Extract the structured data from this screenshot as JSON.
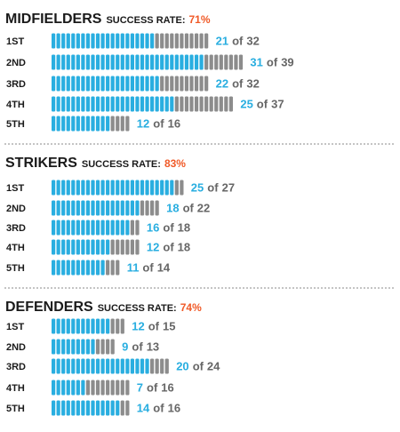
{
  "colors": {
    "success": "#29aee0",
    "miss": "#8c8c8c",
    "rate": "#f05a28",
    "text": "#1a1a1a",
    "of_text": "#666666"
  },
  "chart_data": [
    {
      "type": "bar",
      "title": "MIDFIELDERS",
      "subtitle": "SUCCESS RATE:",
      "rate": "71%",
      "of_word": "of",
      "categories": [
        "1ST",
        "2ND",
        "3RD",
        "4TH",
        "5TH"
      ],
      "series": [
        {
          "name": "",
          "values": [
            21,
            31,
            22,
            25,
            12
          ]
        },
        {
          "name": "",
          "values": [
            32,
            39,
            32,
            37,
            16
          ]
        }
      ]
    },
    {
      "type": "bar",
      "title": "STRIKERS",
      "subtitle": "SUCCESS RATE:",
      "rate": "83%",
      "of_word": "of",
      "categories": [
        "1ST",
        "2ND",
        "3RD",
        "4TH",
        "5TH"
      ],
      "series": [
        {
          "name": "",
          "values": [
            25,
            18,
            16,
            12,
            11
          ]
        },
        {
          "name": "",
          "values": [
            27,
            22,
            18,
            18,
            14
          ]
        }
      ]
    },
    {
      "type": "bar",
      "title": "DEFENDERS",
      "subtitle": "SUCCESS RATE:",
      "rate": "74%",
      "of_word": "of",
      "categories": [
        "1ST",
        "2ND",
        "3RD",
        "4TH",
        "5TH"
      ],
      "series": [
        {
          "name": "",
          "values": [
            12,
            9,
            20,
            7,
            14
          ]
        },
        {
          "name": "",
          "values": [
            15,
            13,
            24,
            16,
            16
          ]
        }
      ]
    }
  ]
}
